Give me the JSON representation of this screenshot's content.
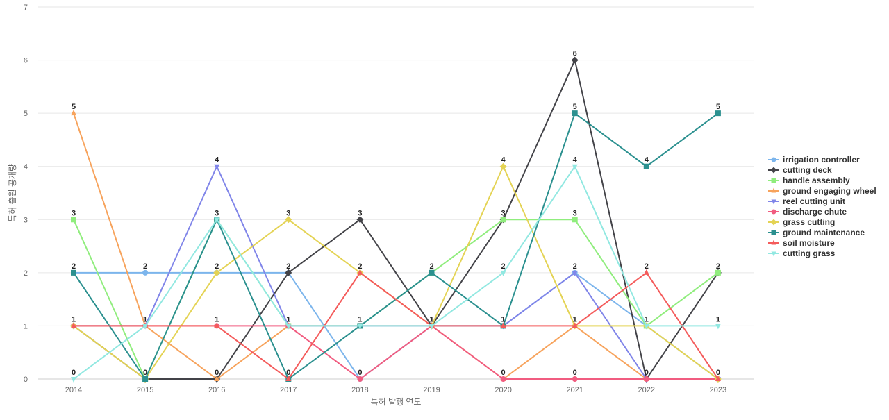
{
  "chart_data": {
    "type": "line",
    "xlabel": "특허 발행 연도",
    "ylabel": "특허 출원 공개량",
    "ylim": [
      0,
      7
    ],
    "y_ticks": [
      0,
      1,
      2,
      3,
      4,
      5,
      6,
      7
    ],
    "grid": true,
    "legend_position": "right",
    "x": [
      "2014",
      "2015",
      "2016",
      "2017",
      "2018",
      "2019",
      "2020",
      "2021",
      "2022",
      "2023"
    ],
    "series": [
      {
        "name": "irrigation controller",
        "color": "#7cb5ec",
        "marker": "circle",
        "values": [
          2,
          2,
          2,
          2,
          0,
          1,
          1,
          2,
          1,
          0
        ]
      },
      {
        "name": "cutting deck",
        "color": "#434348",
        "marker": "diamond",
        "values": [
          1,
          0,
          0,
          2,
          3,
          1,
          3,
          6,
          0,
          2
        ]
      },
      {
        "name": "handle assembly",
        "color": "#90ed7d",
        "marker": "square",
        "values": [
          3,
          0,
          3,
          1,
          1,
          2,
          3,
          3,
          1,
          2
        ]
      },
      {
        "name": "ground engaging wheel",
        "color": "#f7a35c",
        "marker": "triangle",
        "values": [
          5,
          1,
          0,
          1,
          1,
          1,
          0,
          1,
          0,
          0
        ]
      },
      {
        "name": "reel cutting unit",
        "color": "#8085e9",
        "marker": "triangle-down",
        "values": [
          1,
          1,
          4,
          1,
          1,
          1,
          1,
          2,
          0,
          0
        ]
      },
      {
        "name": "discharge chute",
        "color": "#f15c80",
        "marker": "circle",
        "values": [
          1,
          1,
          1,
          1,
          0,
          1,
          0,
          0,
          0,
          0
        ]
      },
      {
        "name": "grass cutting",
        "color": "#e4d354",
        "marker": "diamond",
        "values": [
          1,
          0,
          2,
          3,
          2,
          1,
          4,
          1,
          1,
          0
        ]
      },
      {
        "name": "ground maintenance",
        "color": "#2b908f",
        "marker": "square",
        "values": [
          2,
          0,
          3,
          0,
          1,
          2,
          1,
          5,
          4,
          5
        ]
      },
      {
        "name": "soil moisture",
        "color": "#f45b5b",
        "marker": "triangle",
        "values": [
          1,
          1,
          1,
          0,
          2,
          1,
          1,
          1,
          2,
          0
        ]
      },
      {
        "name": "cutting grass",
        "color": "#91e8e1",
        "marker": "triangle-down",
        "values": [
          0,
          1,
          3,
          1,
          1,
          1,
          2,
          4,
          1,
          1
        ]
      }
    ],
    "data_labels": [
      {
        "x": "2014",
        "values": [
          "5",
          "3",
          "2",
          "1",
          "0"
        ]
      },
      {
        "x": "2015",
        "values": [
          "2",
          "1",
          "0"
        ]
      },
      {
        "x": "2016",
        "values": [
          "4",
          "3",
          "2",
          "1",
          "0"
        ]
      },
      {
        "x": "2017",
        "values": [
          "3",
          "2",
          "1",
          "0"
        ]
      },
      {
        "x": "2018",
        "values": [
          "3",
          "2",
          "1",
          "0"
        ]
      },
      {
        "x": "2019",
        "values": [
          "2",
          "1"
        ]
      },
      {
        "x": "2020",
        "values": [
          "4",
          "3",
          "2",
          "1",
          "0"
        ]
      },
      {
        "x": "2021",
        "values": [
          "6",
          "5",
          "4",
          "3",
          "2",
          "1",
          "0"
        ]
      },
      {
        "x": "2022",
        "values": [
          "4",
          "2",
          "1",
          "0"
        ]
      },
      {
        "x": "2023",
        "values": [
          "5",
          "2",
          "1",
          "0"
        ]
      }
    ]
  }
}
